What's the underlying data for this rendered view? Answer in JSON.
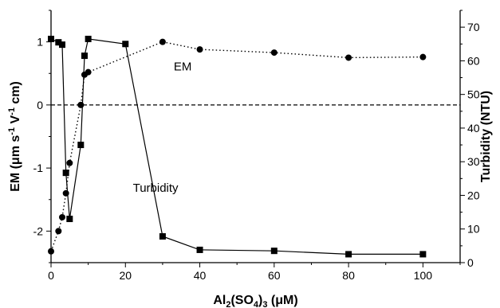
{
  "chart_data": {
    "type": "line",
    "x_axis": {
      "label_parts": [
        "Al",
        "2",
        "(SO",
        "4",
        ")",
        "3",
        " (μM)"
      ],
      "range": [
        0,
        110
      ],
      "ticks": [
        0,
        20,
        40,
        60,
        80,
        100
      ]
    },
    "y_axis_left": {
      "label_parts": [
        "EM (μm s",
        "-1",
        " V",
        "-1",
        " cm)"
      ],
      "range": [
        -2.5,
        1.5
      ],
      "ticks": [
        -2,
        -1,
        0,
        1
      ]
    },
    "y_axis_right": {
      "label": "Turbidity (NTU)",
      "range": [
        0,
        75
      ],
      "ticks": [
        0,
        10,
        20,
        30,
        40,
        50,
        60,
        70
      ]
    },
    "reference_line": {
      "axis": "left",
      "y": 0,
      "style": "dashed"
    },
    "series": [
      {
        "name": "EM",
        "axis": "left",
        "marker": "circle",
        "line_style": "dotted",
        "color": "#000000",
        "x": [
          0,
          2,
          3,
          4,
          5,
          8,
          9,
          10,
          30,
          40,
          60,
          80,
          100
        ],
        "y": [
          -2.32,
          -2.0,
          -1.78,
          -1.4,
          -0.92,
          0.0,
          0.48,
          0.52,
          1.0,
          0.88,
          0.83,
          0.75,
          0.76
        ]
      },
      {
        "name": "Turbidity",
        "axis": "right",
        "marker": "square",
        "line_style": "solid",
        "color": "#000000",
        "x": [
          0,
          2,
          3,
          4,
          5,
          8,
          9,
          10,
          20,
          30,
          40,
          60,
          80,
          100
        ],
        "y": [
          66.5,
          65.5,
          64.8,
          26.7,
          13.0,
          35.0,
          61.5,
          66.5,
          65.0,
          7.8,
          3.8,
          3.5,
          2.5,
          2.5
        ]
      }
    ],
    "annotations": [
      {
        "text": "EM",
        "x": 33,
        "y": 0.55,
        "axis": "left"
      },
      {
        "text": "Turbidity",
        "x": 22,
        "y": 21,
        "axis": "right"
      }
    ]
  }
}
